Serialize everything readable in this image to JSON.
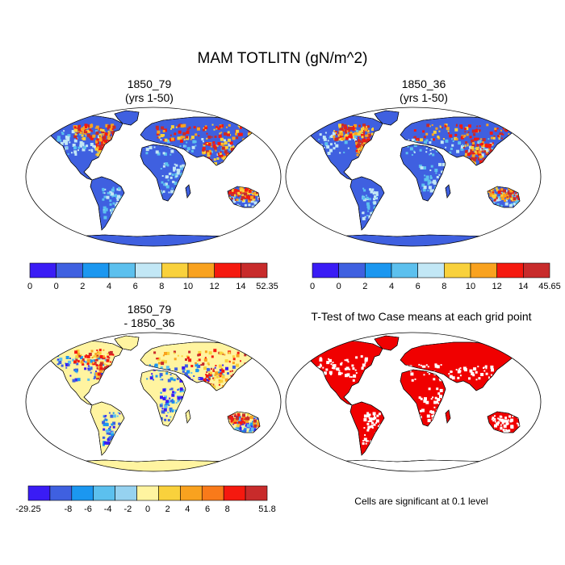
{
  "title": "MAM TOTLITN (gN/m^2)",
  "panels": [
    {
      "id": "p1",
      "title_line1": "1850_79",
      "title_line2": "(yrs 1-50)"
    },
    {
      "id": "p2",
      "title_line1": "1850_36",
      "title_line2": "(yrs 1-50)"
    },
    {
      "id": "p3",
      "title_line1": "1850_79",
      "title_line2": "- 1850_36"
    },
    {
      "id": "p4",
      "title_line1": "T-Test of two Case means at each grid point",
      "title_line2": ""
    }
  ],
  "colorbars": [
    {
      "id": "cb1",
      "colors": [
        "#3a1cf5",
        "#3f60e0",
        "#1b97f0",
        "#5cc0ee",
        "#c2e7f5",
        "#f9d13c",
        "#f9a21f",
        "#f5190f",
        "#c82b2b"
      ],
      "labels": [
        "0",
        "0",
        "2",
        "4",
        "6",
        "8",
        "10",
        "12",
        "14",
        "52.35"
      ]
    },
    {
      "id": "cb2",
      "colors": [
        "#3a1cf5",
        "#3f60e0",
        "#1b97f0",
        "#5cc0ee",
        "#c2e7f5",
        "#f9d13c",
        "#f9a21f",
        "#f5190f",
        "#c82b2b"
      ],
      "labels": [
        "0",
        "0",
        "2",
        "4",
        "6",
        "8",
        "10",
        "12",
        "14",
        "45.65"
      ]
    },
    {
      "id": "cb3",
      "colors": [
        "#3a1cf5",
        "#3f60e0",
        "#1b97f0",
        "#5cc0ee",
        "#96d2f0",
        "#fff4a0",
        "#f9d13c",
        "#f9a21f",
        "#f97a1a",
        "#f5190f",
        "#c82b2b"
      ],
      "labels": [
        "-29.25",
        "",
        "-8",
        "-6",
        "-4",
        "-2",
        "0",
        "2",
        "4",
        "6",
        "8",
        "",
        "51.8"
      ]
    }
  ],
  "significance_note": "Cells are significant at 0.1 level",
  "colors": {
    "land_low": "#3f60e0",
    "diff_neutral": "#fff4a0",
    "significant": "#f00000",
    "outline": "#000000"
  }
}
